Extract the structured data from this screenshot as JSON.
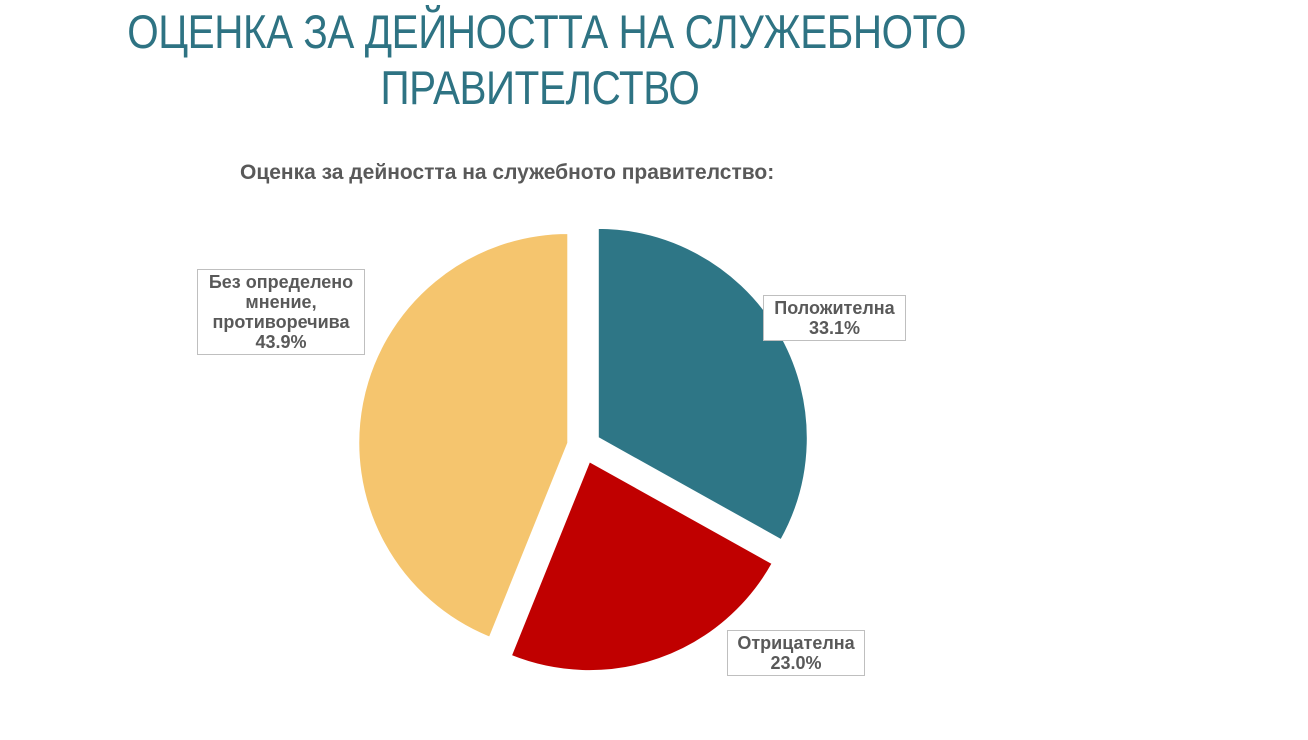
{
  "slide": {
    "title_line1": "ОЦЕНКА ЗА ДЕЙНОСТТА НА СЛУЖЕБНОТО",
    "title_line2": "ПРАВИТЕЛСТВО"
  },
  "chart_data": {
    "type": "pie",
    "title": "Оценка за дейността на служебното правителство:",
    "slices": [
      {
        "name": "Положителна",
        "value": 33.1,
        "label_value": "33.1%",
        "color": "#2e7686"
      },
      {
        "name": "Отрицателна",
        "value": 23.0,
        "label_value": "23.0%",
        "color": "#c00000"
      },
      {
        "name": "Без определено мнение, противоречива",
        "name_lines": [
          "Без определено",
          "мнение,",
          "противоречива"
        ],
        "value": 43.9,
        "label_value": "43.9%",
        "color": "#f5c56e"
      }
    ],
    "exploded": true,
    "legend": "none"
  }
}
